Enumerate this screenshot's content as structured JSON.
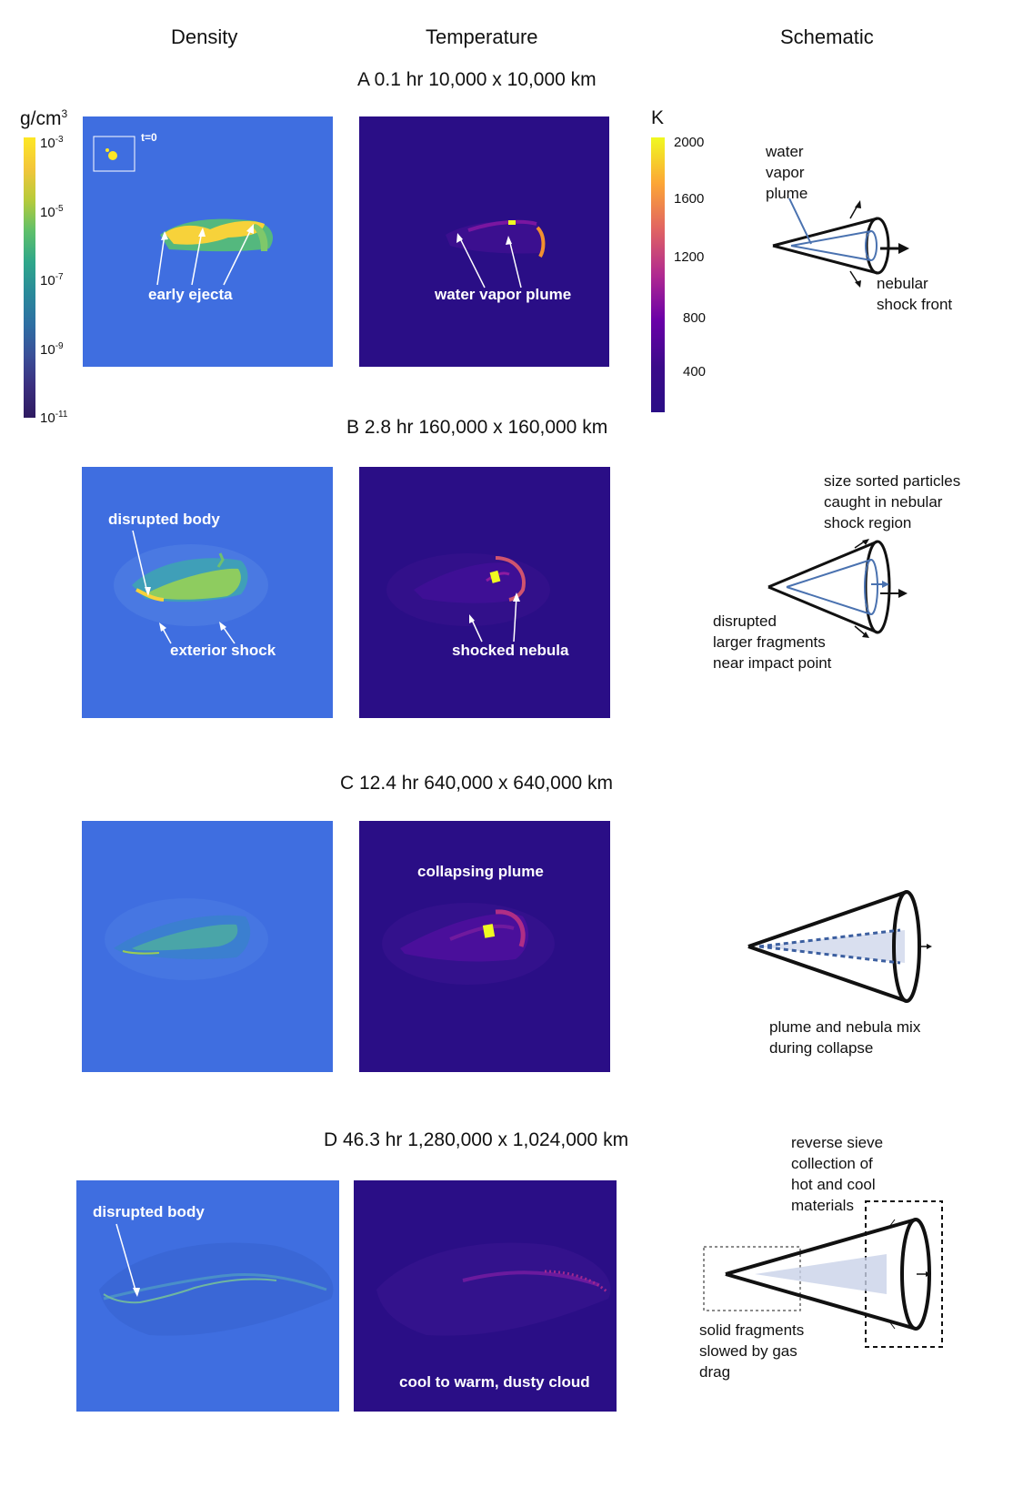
{
  "columns": {
    "density": "Density",
    "temperature": "Temperature",
    "schematic": "Schematic"
  },
  "colorbars": {
    "density": {
      "unit": "g/cm",
      "unit_sup": "3",
      "ticks": [
        {
          "base": "10",
          "exp": "-3"
        },
        {
          "base": "10",
          "exp": "-5"
        },
        {
          "base": "10",
          "exp": "-7"
        },
        {
          "base": "10",
          "exp": "-9"
        },
        {
          "base": "10",
          "exp": "-11"
        }
      ]
    },
    "temperature": {
      "unit": "K",
      "ticks": [
        "2000",
        "1600",
        "1200",
        "800",
        "400"
      ]
    }
  },
  "rows": {
    "a": {
      "title": "A  0.1 hr  10,000 x 10,000 km",
      "inset": "t=0",
      "density_label": "early ejecta",
      "temp_label": "water vapor plume",
      "schematic": {
        "l1": "water",
        "l2": "vapor",
        "l3": "plume",
        "r1": "nebular",
        "r2": "shock front"
      }
    },
    "b": {
      "title": "B  2.8 hr  160,000 x 160,000 km",
      "density_label1": "disrupted body",
      "density_label2": "exterior shock",
      "temp_label": "shocked nebula",
      "schematic": {
        "t1": "size sorted particles",
        "t2": "caught in nebular",
        "t3": "shock region",
        "b1": "disrupted",
        "b2": "larger fragments",
        "b3": "near impact point"
      }
    },
    "c": {
      "title": "C  12.4 hr  640,000 x 640,000 km",
      "temp_label": "collapsing plume",
      "schematic": {
        "b1": "plume and nebula mix",
        "b2": "during collapse"
      }
    },
    "d": {
      "title": "D  46.3 hr  1,280,000 x 1,024,000 km",
      "density_label": "disrupted body",
      "temp_label": "cool to warm, dusty cloud",
      "schematic": {
        "t1": "reverse sieve",
        "t2": "collection of",
        "t3": "hot and cool",
        "t4": "materials",
        "b1": "solid fragments",
        "b2": "slowed by gas",
        "b3": "drag"
      }
    }
  },
  "colors": {
    "density_bg": "#3f6ee0",
    "temperature_bg": "#2a0e86",
    "schematic_blue": "#4a72b0"
  }
}
